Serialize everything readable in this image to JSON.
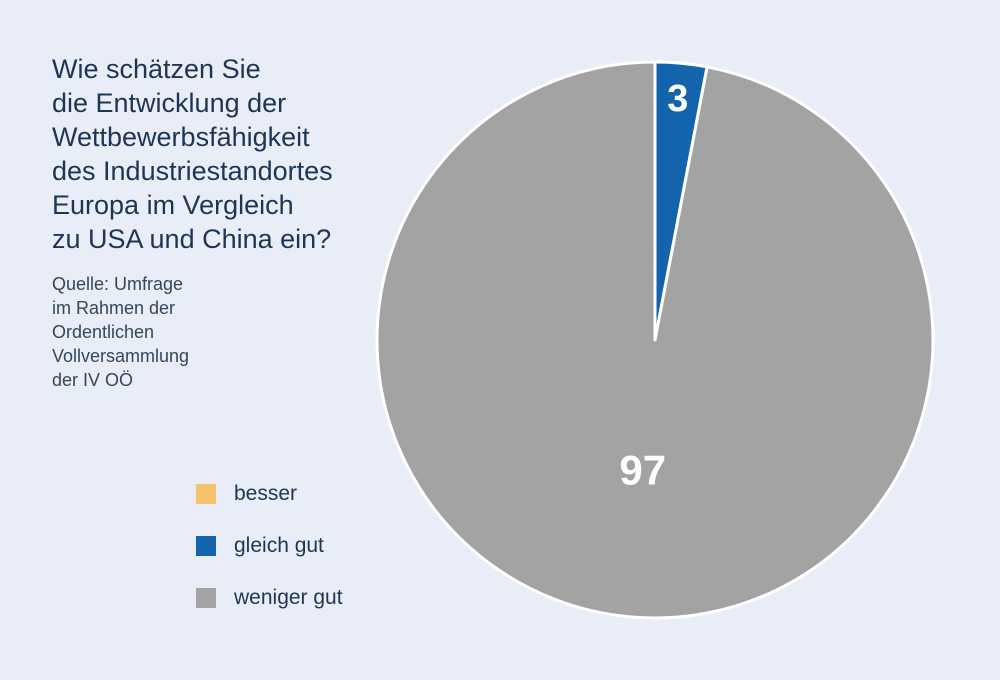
{
  "title_lines": [
    "Wie schätzen Sie",
    "die Entwicklung der",
    "Wettbewerbsfähigkeit",
    "des Industriestandortes",
    "Europa im Vergleich",
    "zu USA und China ein?"
  ],
  "source_lines": [
    "Quelle: Umfrage",
    "im Rahmen der",
    "Ordentlichen",
    "Vollversammlung",
    "der IV OÖ"
  ],
  "chart_data": {
    "type": "pie",
    "title": "Wie schätzen Sie die Entwicklung der Wettbewerbsfähigkeit des Industriestandortes Europa im Vergleich zu USA und China ein?",
    "categories": [
      "besser",
      "gleich gut",
      "weniger gut"
    ],
    "values": [
      0,
      3,
      97
    ],
    "data_labels": [
      "",
      "3",
      "97"
    ],
    "colors": [
      "#f5c36b",
      "#1463ad",
      "#a3a3a3"
    ],
    "legend_position": "left",
    "start_angle": "top, clockwise"
  }
}
